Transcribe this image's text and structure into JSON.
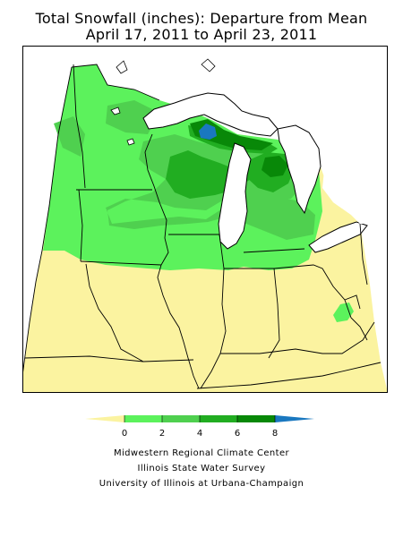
{
  "title": {
    "line1": "Total Snowfall (inches): Departure from Mean",
    "line2": "April 17, 2011 to April 23, 2011"
  },
  "legend": {
    "ticks": [
      "0",
      "2",
      "4",
      "6",
      "8"
    ],
    "colors": {
      "lt0": "#fbf3a0",
      "0to2": "#5cf25c",
      "2to4": "#4fd04f",
      "4to6": "#21ad21",
      "6to8": "#088808",
      "gt8": "#1a78c0"
    }
  },
  "map_colors": {
    "land_yellow": "#fbf3a0",
    "green_1": "#5cf25c",
    "green_2": "#4fd04f",
    "green_3": "#21ad21",
    "green_4": "#088808",
    "blue": "#1a78c0",
    "water": "#ffffff",
    "border": "#000000"
  },
  "credits": {
    "line1": "Midwestern Regional Climate Center",
    "line2": "Illinois State Water Survey",
    "line3": "University of Illinois at Urbana-Champaign"
  }
}
